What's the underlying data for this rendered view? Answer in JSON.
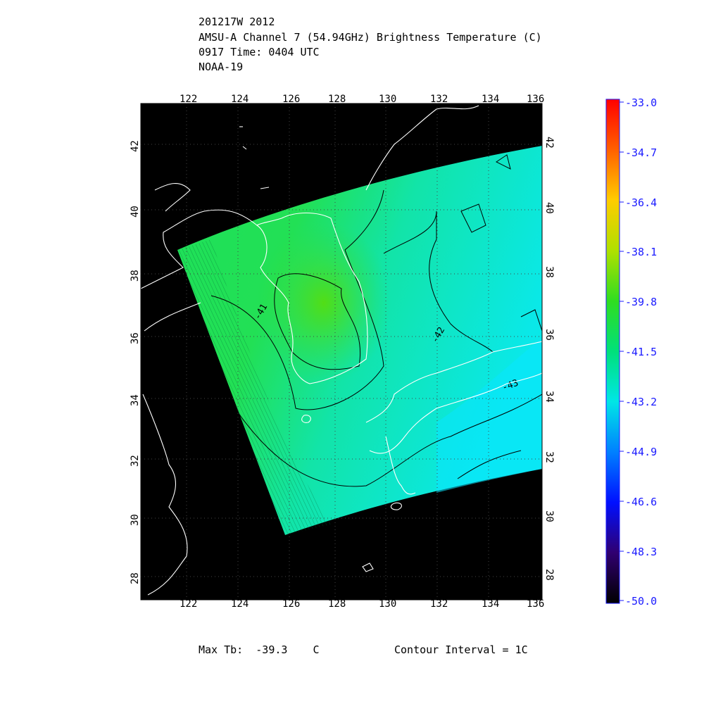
{
  "header": {
    "line1": "201217W 2012",
    "line2": "AMSU-A Channel 7 (54.94GHz) Brightness Temperature (C)",
    "line3": "0917 Time: 0404 UTC",
    "line4": "NOAA-19"
  },
  "map": {
    "lon_ticks": [
      "122",
      "124",
      "126",
      "128",
      "130",
      "132",
      "134",
      "136"
    ],
    "lat_ticks": [
      "42",
      "40",
      "38",
      "36",
      "34",
      "32",
      "30",
      "28"
    ],
    "contour_labels": [
      "-41",
      "-42",
      "-43"
    ]
  },
  "colorbar": {
    "labels": [
      "-33.0",
      "-34.7",
      "-36.4",
      "-38.1",
      "-39.8",
      "-41.5",
      "-43.2",
      "-44.9",
      "-46.6",
      "-48.3",
      "-50.0"
    ],
    "colors": [
      "#ff0000",
      "#ff8000",
      "#ffff00",
      "#66dd00",
      "#00dd33",
      "#00e6a0",
      "#00e6ff",
      "#0080ff",
      "#0000ff",
      "#400080",
      "#000000"
    ]
  },
  "footer": {
    "max_tb": "Max Tb:  -39.3    C",
    "contour_interval": "Contour Interval = 1C"
  },
  "chart_data": {
    "type": "heatmap",
    "title": "AMSU-A Channel 7 (54.94GHz) Brightness Temperature (C)",
    "xlabel": "",
    "ylabel": "",
    "x_range": [
      120.5,
      136
    ],
    "y_range": [
      27.2,
      43.5
    ],
    "color_range": [
      -50.0,
      -33.0
    ],
    "max_tb": -39.3,
    "contour_interval": 1,
    "contour_levels": [
      -41,
      -42,
      -43
    ]
  }
}
